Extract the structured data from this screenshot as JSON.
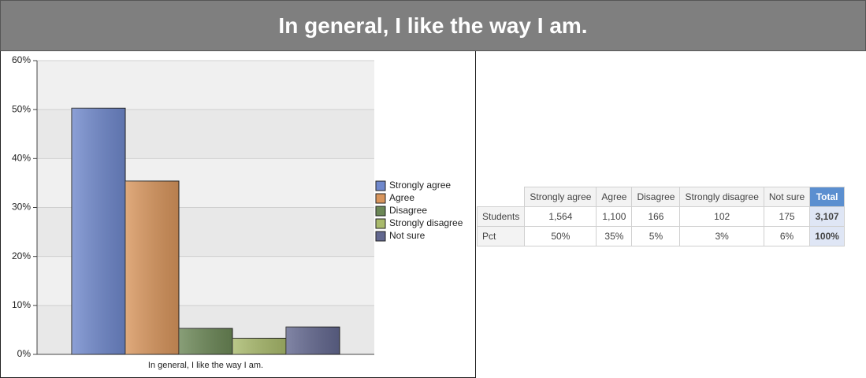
{
  "header": {
    "title": "In general, I like the way I am."
  },
  "chart_data": {
    "type": "bar",
    "categories": [
      "In general, I like the way I am."
    ],
    "series": [
      {
        "name": "Strongly agree",
        "color": "#6f88cc",
        "values": [
          50.3
        ]
      },
      {
        "name": "Agree",
        "color": "#d8955c",
        "values": [
          35.4
        ]
      },
      {
        "name": "Disagree",
        "color": "#6b8756",
        "values": [
          5.3
        ]
      },
      {
        "name": "Strongly disagree",
        "color": "#a9ba6c",
        "values": [
          3.3
        ]
      },
      {
        "name": "Not sure",
        "color": "#62678f",
        "values": [
          5.6
        ]
      }
    ],
    "ylim": [
      0,
      60
    ],
    "yticks": [
      {
        "value": 0,
        "label": "0%"
      },
      {
        "value": 10,
        "label": "10%"
      },
      {
        "value": 20,
        "label": "20%"
      },
      {
        "value": 30,
        "label": "30%"
      },
      {
        "value": 40,
        "label": "40%"
      },
      {
        "value": 50,
        "label": "50%"
      },
      {
        "value": 60,
        "label": "60%"
      }
    ],
    "grid": true,
    "legend": "right"
  },
  "table": {
    "columns": [
      "Strongly agree",
      "Agree",
      "Disagree",
      "Strongly disagree",
      "Not sure",
      "Total"
    ],
    "rows": [
      {
        "label": "Students",
        "cells": [
          "1,564",
          "1,100",
          "166",
          "102",
          "175",
          "3,107"
        ]
      },
      {
        "label": "Pct",
        "cells": [
          "50%",
          "35%",
          "5%",
          "3%",
          "6%",
          "100%"
        ]
      }
    ]
  }
}
